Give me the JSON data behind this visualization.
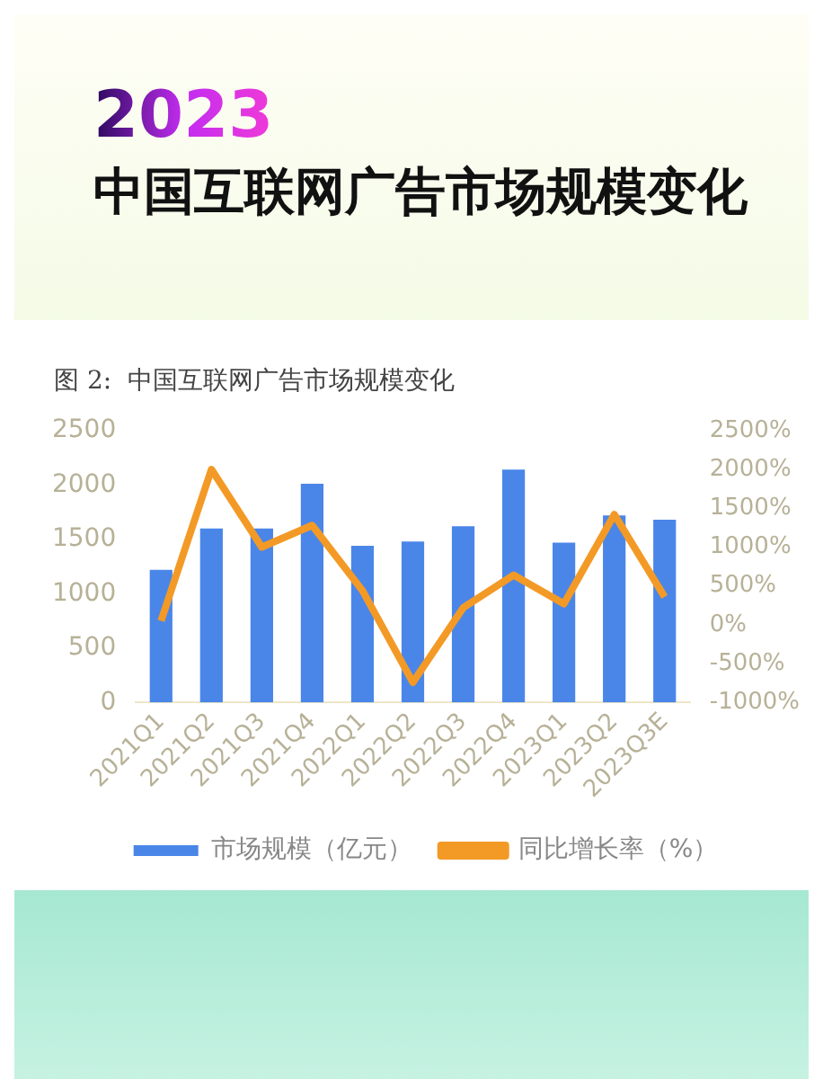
{
  "chart_data": {
    "type": "bar",
    "title": "2023",
    "subtitle": "中国互联网广告市场规模变化",
    "annotations": [
      "图 2:  中国互联网广告市场规模变化"
    ],
    "categories": [
      "2021Q1",
      "2021Q2",
      "2021Q3",
      "2021Q4",
      "2022Q1",
      "2022Q2",
      "2022Q3",
      "2022Q4",
      "2023Q1",
      "2023Q2",
      "2023Q3E"
    ],
    "series": [
      {
        "name": "市场规模（亿元）",
        "color": "#4a86e8",
        "values": [
          1220,
          1600,
          1600,
          2010,
          1440,
          1480,
          1620,
          2140,
          1470,
          1720,
          1680
        ]
      },
      {
        "name": "同比增长率（%）",
        "type": "line",
        "axis": "y2",
        "color": "#f39a26",
        "values": [
          50,
          2000,
          1000,
          1280,
          440,
          -740,
          220,
          640,
          270,
          1420,
          360
        ]
      }
    ],
    "ylim": [
      0,
      2500
    ],
    "yticks": [
      0,
      500,
      1000,
      1500,
      2000,
      2500
    ],
    "y2lim": [
      -1000,
      2500
    ],
    "y2ticks": [
      {
        "value": -1000,
        "label": "-1000%"
      },
      {
        "value": -500,
        "label": "-500%"
      },
      {
        "value": 0,
        "label": "0%"
      },
      {
        "value": 500,
        "label": "500%"
      },
      {
        "value": 1000,
        "label": "1000%"
      },
      {
        "value": 1500,
        "label": "1500%"
      },
      {
        "value": 2000,
        "label": "2000%"
      },
      {
        "value": 2500,
        "label": "2500%"
      }
    ],
    "grid": false,
    "legend": "bottom",
    "marker": "none"
  }
}
